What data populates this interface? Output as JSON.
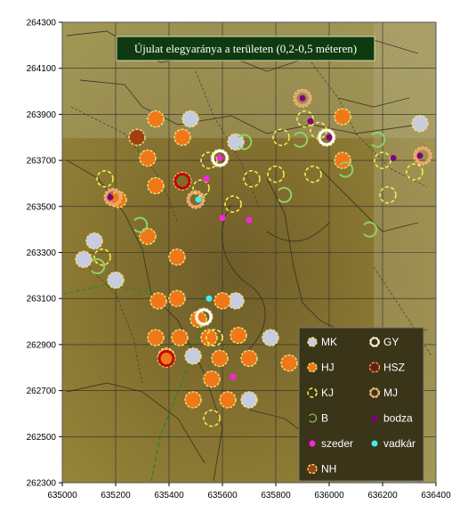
{
  "chart_data": {
    "type": "scatter",
    "title": "Újulat elegyaránya a területen (0,2-0,5 méteren)",
    "xlim": [
      635000,
      636400
    ],
    "ylim": [
      262300,
      264300
    ],
    "x_ticks": [
      "635000",
      "635200",
      "635400",
      "635600",
      "635800",
      "636000",
      "636200",
      "636400"
    ],
    "y_ticks": [
      "262300",
      "262500",
      "262700",
      "262900",
      "263100",
      "263300",
      "263500",
      "263700",
      "263900",
      "264100",
      "264300"
    ],
    "grid": true,
    "legend_position": "bottom-right",
    "background": "topographic map",
    "series": [
      {
        "name": "MK",
        "color": "#c8cce0",
        "marker": "filled-circle",
        "points": [
          [
            635480,
            263880
          ],
          [
            635650,
            263780
          ],
          [
            636340,
            263860
          ],
          [
            635120,
            263350
          ],
          [
            635080,
            263270
          ],
          [
            635200,
            263180
          ],
          [
            635650,
            263090
          ],
          [
            635490,
            262850
          ],
          [
            635780,
            262930
          ],
          [
            635700,
            262660
          ]
        ]
      },
      {
        "name": "GY",
        "color": "#ffffff",
        "marker": "ring",
        "points": [
          [
            635590,
            263710
          ],
          [
            635990,
            263800
          ],
          [
            635530,
            263020
          ]
        ]
      },
      {
        "name": "HJ",
        "color": "#f07818",
        "marker": "filled-circle",
        "points": [
          [
            635350,
            263880
          ],
          [
            636050,
            263890
          ],
          [
            635450,
            263800
          ],
          [
            635320,
            263710
          ],
          [
            636050,
            263700
          ],
          [
            635350,
            263590
          ],
          [
            635210,
            263530
          ],
          [
            635320,
            263370
          ],
          [
            635430,
            263280
          ],
          [
            635360,
            263090
          ],
          [
            635430,
            263100
          ],
          [
            635510,
            263010
          ],
          [
            635600,
            263090
          ],
          [
            635350,
            262930
          ],
          [
            635440,
            262930
          ],
          [
            635550,
            262930
          ],
          [
            635660,
            262940
          ],
          [
            635390,
            262850
          ],
          [
            635590,
            262840
          ],
          [
            635700,
            262840
          ],
          [
            635850,
            262820
          ],
          [
            635560,
            262750
          ],
          [
            635490,
            262660
          ],
          [
            635620,
            262660
          ]
        ]
      },
      {
        "name": "HSZ",
        "color": "#c80000",
        "marker": "ring",
        "points": [
          [
            635450,
            263610
          ],
          [
            635390,
            262840
          ]
        ]
      },
      {
        "name": "KJ",
        "color": "#f0f050",
        "marker": "dashed-ring",
        "points": [
          [
            635160,
            263620
          ],
          [
            635550,
            263700
          ],
          [
            635520,
            263580
          ],
          [
            635640,
            263510
          ],
          [
            635910,
            263880
          ],
          [
            635820,
            263800
          ],
          [
            635960,
            263830
          ],
          [
            636200,
            263700
          ],
          [
            636320,
            263650
          ],
          [
            635710,
            263620
          ],
          [
            635940,
            263640
          ],
          [
            636220,
            263550
          ],
          [
            635150,
            263280
          ],
          [
            635570,
            262930
          ],
          [
            635560,
            262580
          ],
          [
            635800,
            263640
          ]
        ]
      },
      {
        "name": "MJ",
        "color": "#f0a070",
        "marker": "ring",
        "points": [
          [
            635900,
            263970
          ],
          [
            635500,
            263530
          ],
          [
            635190,
            263540
          ],
          [
            636350,
            263720
          ]
        ]
      },
      {
        "name": "B",
        "color": "#90d060",
        "marker": "open-c",
        "points": [
          [
            635680,
            263780
          ],
          [
            635890,
            263790
          ],
          [
            635290,
            263420
          ],
          [
            635130,
            263240
          ],
          [
            636150,
            263400
          ],
          [
            635830,
            263550
          ],
          [
            636180,
            263790
          ],
          [
            636060,
            263660
          ]
        ]
      },
      {
        "name": "bodza",
        "color": "#800080",
        "marker": "small-dot",
        "points": [
          [
            635930,
            263870
          ],
          [
            636000,
            263800
          ],
          [
            636240,
            263710
          ],
          [
            636340,
            263720
          ],
          [
            635900,
            263970
          ],
          [
            635180,
            263540
          ]
        ]
      },
      {
        "name": "szeder",
        "color": "#ff22dd",
        "marker": "small-dot",
        "points": [
          [
            635540,
            263620
          ],
          [
            635600,
            263450
          ],
          [
            635700,
            263440
          ],
          [
            635590,
            263710
          ],
          [
            635640,
            262760
          ]
        ]
      },
      {
        "name": "vadkár",
        "color": "#40f0f0",
        "marker": "small-dot",
        "points": [
          [
            635510,
            263530
          ],
          [
            635550,
            263100
          ]
        ]
      },
      {
        "name": "NH",
        "color": "#a04010",
        "marker": "filled-circle",
        "points": [
          [
            635280,
            263800
          ]
        ]
      }
    ]
  }
}
